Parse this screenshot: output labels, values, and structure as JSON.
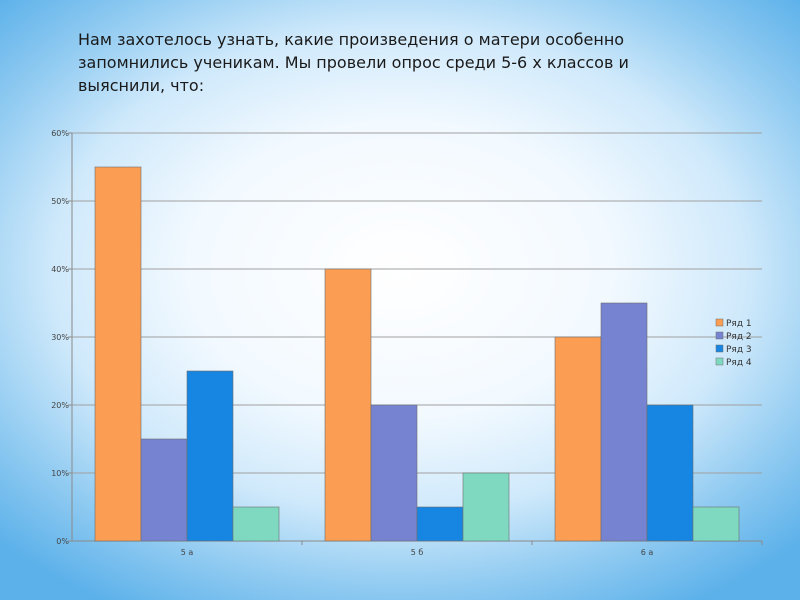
{
  "slide": {
    "text": "Нам захотелось узнать, какие произведения о матери особенно запомнились ученикам. Мы провели опрос среди 5-6 х классов и выяснили, что:"
  },
  "chart_data": {
    "type": "bar",
    "categories": [
      "5 а",
      "5 б",
      "6 а"
    ],
    "series": [
      {
        "name": "Ряд 1",
        "color": "#fb9d52",
        "values": [
          55,
          40,
          30
        ]
      },
      {
        "name": "Ряд 2",
        "color": "#7583d0",
        "values": [
          15,
          20,
          35
        ]
      },
      {
        "name": "Ряд 3",
        "color": "#1785e2",
        "values": [
          25,
          5,
          20
        ]
      },
      {
        "name": "Ряд 4",
        "color": "#7ed9c0",
        "values": [
          5,
          10,
          5
        ]
      }
    ],
    "y_ticks": [
      "0%",
      "10%",
      "20%",
      "30%",
      "40%",
      "50%",
      "60%"
    ],
    "ylim": [
      0,
      60
    ],
    "y_unit": "%",
    "grid": true,
    "legend_position": "right"
  }
}
